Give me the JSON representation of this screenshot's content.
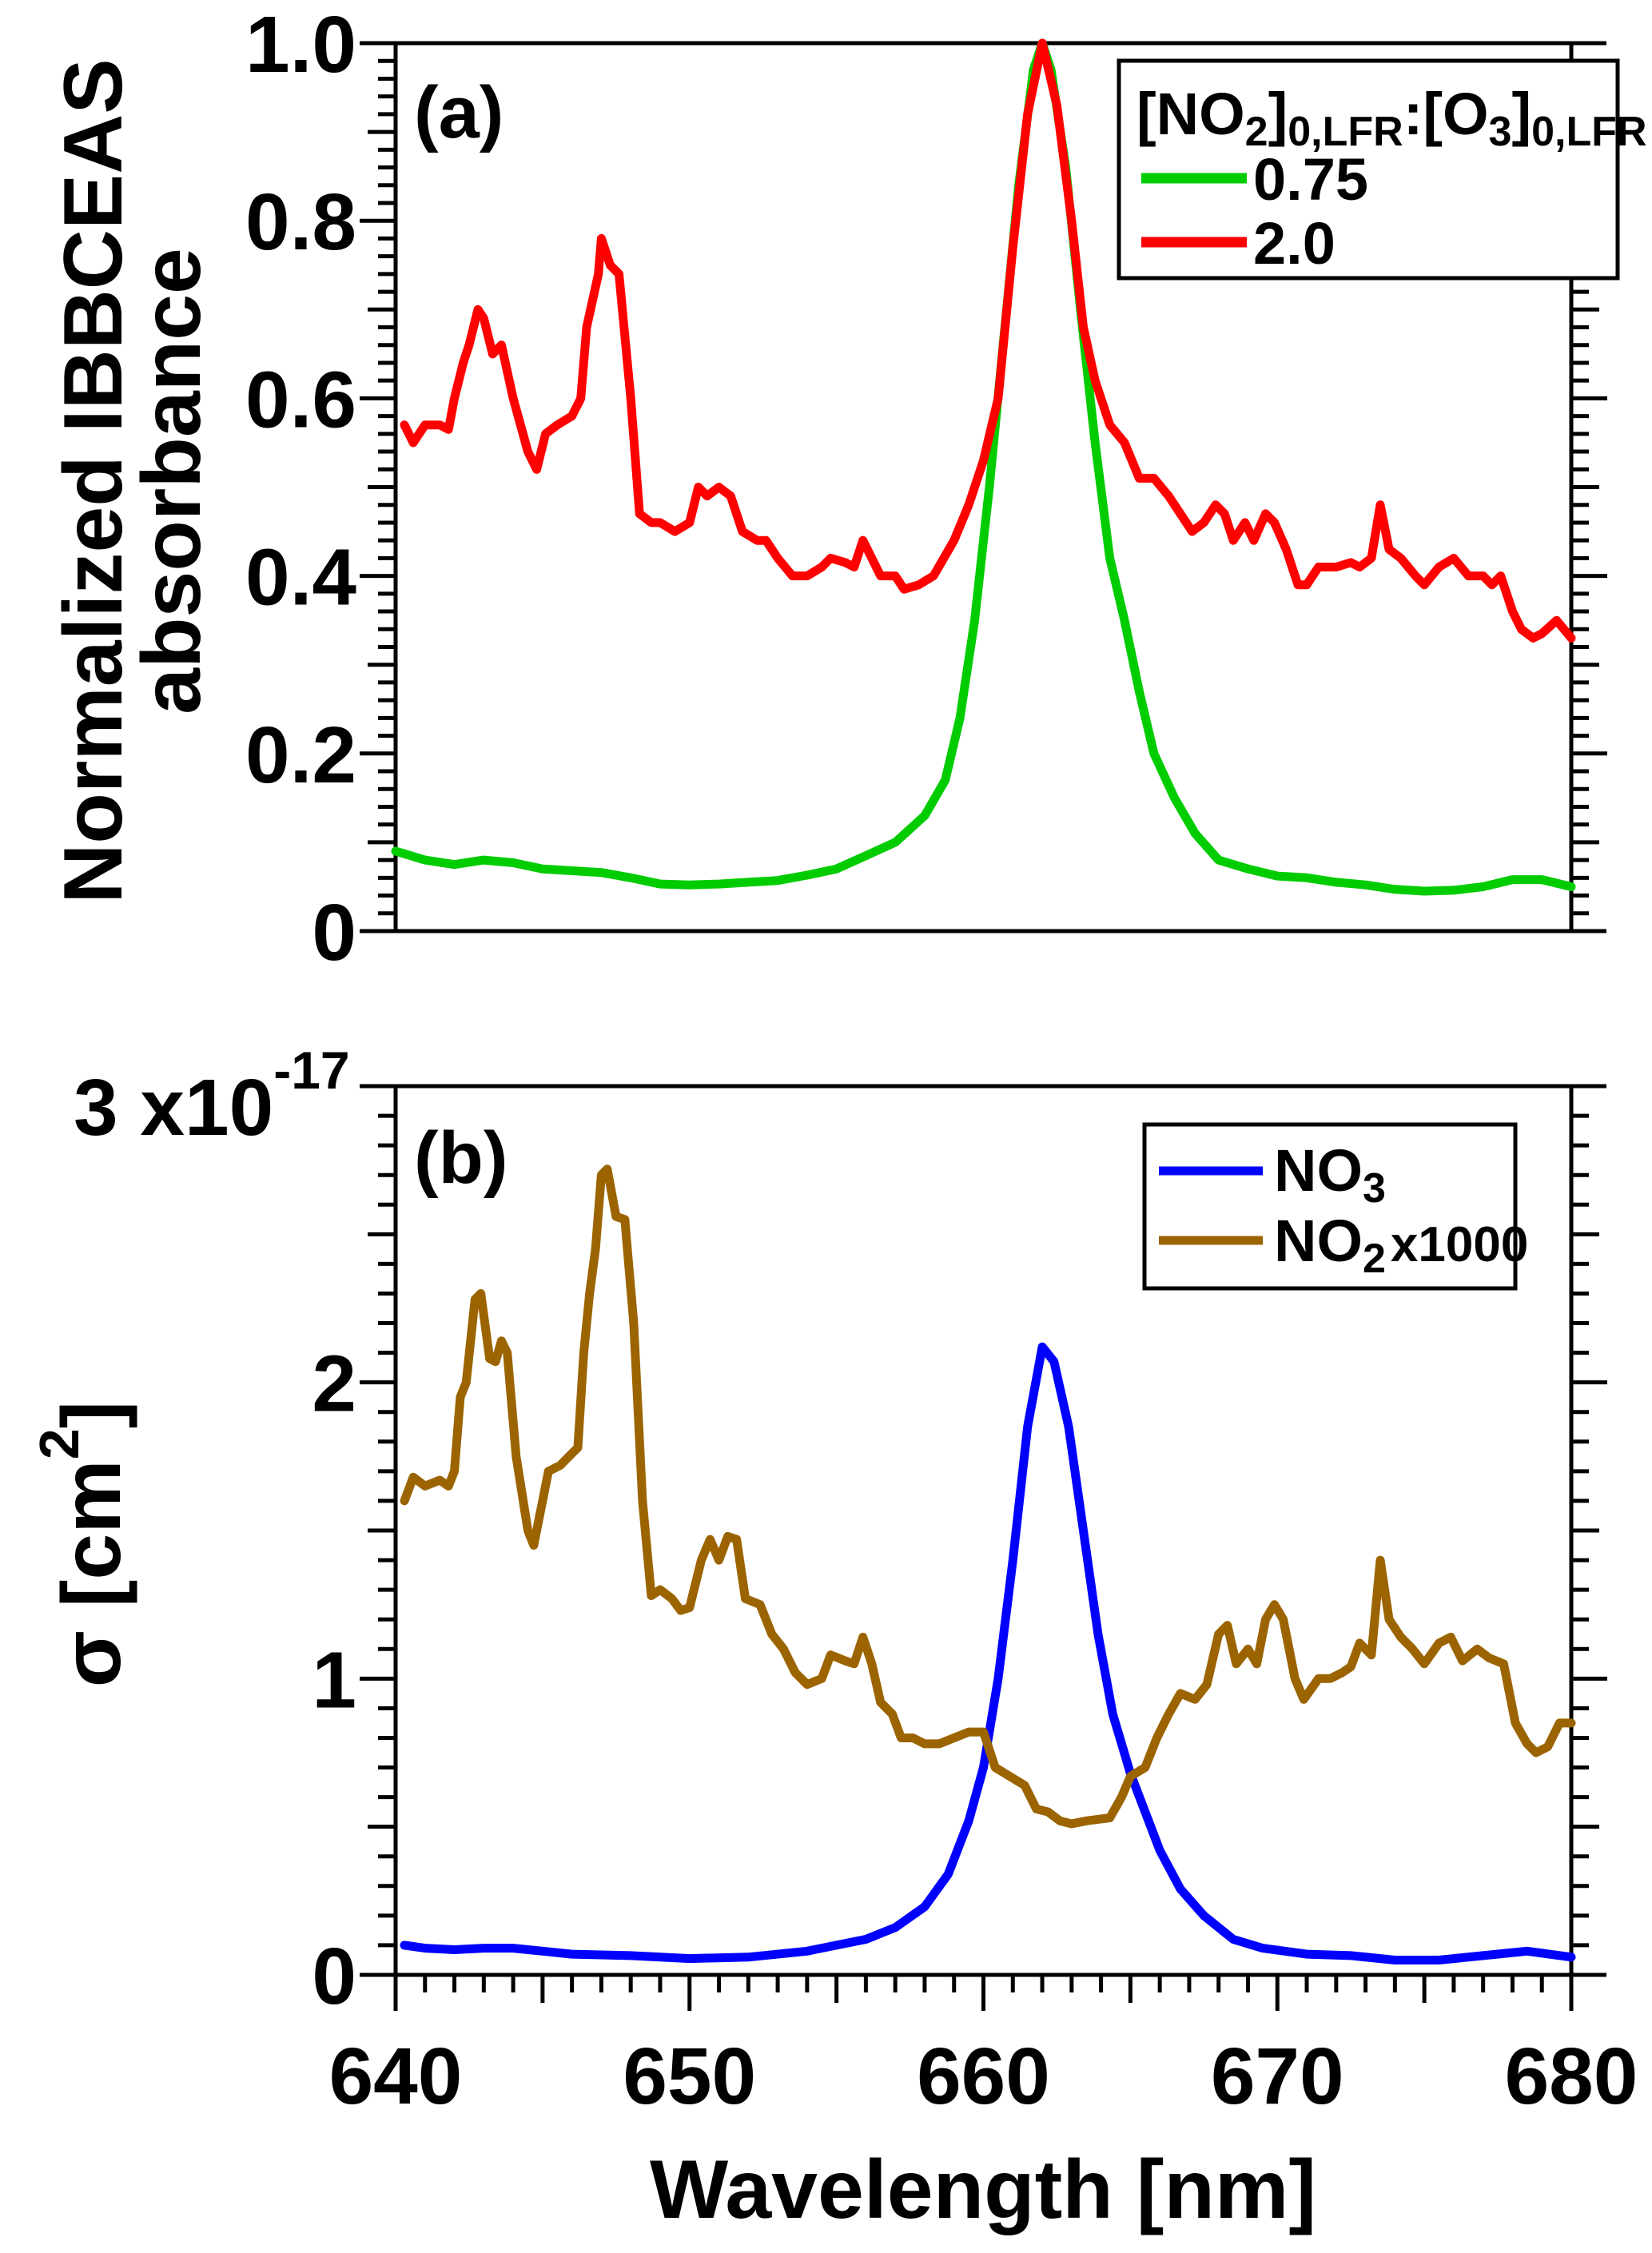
{
  "chart_data": [
    {
      "type": "line",
      "panel_label": "(a)",
      "ylabel_lines": [
        "Normalized IBBCEAS",
        "absorbance"
      ],
      "xlim": [
        640,
        680
      ],
      "ylim": [
        0,
        1.0
      ],
      "yticks": [
        0,
        0.2,
        0.4,
        0.6,
        0.8,
        1.0
      ],
      "ytick_labels": [
        "0",
        "0.2",
        "0.4",
        "0.6",
        "0.8",
        "1.0"
      ],
      "legend": {
        "placement": "top-right",
        "title_parts": [
          {
            "t": "[NO",
            "sub": false
          },
          {
            "t": "2",
            "sub": true
          },
          {
            "t": "]",
            "sub": false
          },
          {
            "t": "0,LFR",
            "sub": true
          },
          {
            "t": ":[O",
            "sub": false
          },
          {
            "t": "3",
            "sub": true
          },
          {
            "t": "]",
            "sub": false
          },
          {
            "t": "0,LFR",
            "sub": true
          }
        ]
      },
      "series": [
        {
          "name": "0.75",
          "color": "#00cc00",
          "x": [
            640,
            641,
            642,
            643,
            644,
            645,
            646,
            647,
            648,
            649,
            650,
            651,
            652,
            653,
            654,
            655,
            656,
            657,
            658,
            658.7,
            659.2,
            659.7,
            660.2,
            660.7,
            661.2,
            661.7,
            662,
            662.3,
            662.8,
            663.3,
            663.8,
            664.3,
            664.8,
            665.3,
            665.8,
            666.5,
            667.2,
            668,
            669,
            670,
            671,
            672,
            673,
            674,
            675,
            676,
            677,
            678,
            679,
            680
          ],
          "y": [
            0.09,
            0.08,
            0.075,
            0.08,
            0.077,
            0.07,
            0.068,
            0.066,
            0.06,
            0.053,
            0.052,
            0.053,
            0.055,
            0.057,
            0.063,
            0.07,
            0.085,
            0.1,
            0.13,
            0.17,
            0.24,
            0.35,
            0.5,
            0.67,
            0.84,
            0.97,
            1.0,
            0.97,
            0.86,
            0.7,
            0.55,
            0.42,
            0.35,
            0.27,
            0.2,
            0.15,
            0.11,
            0.08,
            0.07,
            0.062,
            0.06,
            0.055,
            0.052,
            0.047,
            0.045,
            0.046,
            0.05,
            0.058,
            0.058,
            0.05
          ]
        },
        {
          "name": "2.0",
          "color": "#ff0000",
          "x": [
            640.3,
            640.6,
            641,
            641.5,
            641.8,
            642,
            642.3,
            642.5,
            642.8,
            643,
            643.3,
            643.6,
            644,
            644.5,
            644.8,
            645.1,
            645.5,
            646,
            646.3,
            646.5,
            646.9,
            647,
            647.3,
            647.6,
            648,
            648.3,
            648.7,
            649,
            649.5,
            650,
            650.3,
            650.6,
            651,
            651.4,
            651.8,
            652.3,
            652.6,
            653,
            653.5,
            654,
            654.5,
            654.8,
            655.3,
            655.6,
            655.9,
            656.2,
            656.5,
            657,
            657.3,
            657.8,
            658.3,
            659,
            659.5,
            660,
            660.5,
            661,
            661.5,
            662,
            662.5,
            663,
            663.4,
            663.8,
            664.3,
            664.8,
            665.3,
            665.8,
            666.3,
            666.7,
            667.1,
            667.5,
            667.9,
            668.2,
            668.5,
            668.9,
            669.2,
            669.6,
            669.9,
            670.3,
            670.7,
            671,
            671.4,
            672,
            672.5,
            672.8,
            673.2,
            673.5,
            673.8,
            674.2,
            674.7,
            675,
            675.5,
            676,
            676.5,
            677,
            677.3,
            677.6,
            678,
            678.3,
            678.7,
            679,
            679.5,
            680
          ],
          "y": [
            0.57,
            0.55,
            0.57,
            0.57,
            0.565,
            0.6,
            0.64,
            0.66,
            0.7,
            0.69,
            0.65,
            0.66,
            0.6,
            0.54,
            0.52,
            0.56,
            0.57,
            0.58,
            0.6,
            0.68,
            0.74,
            0.78,
            0.75,
            0.74,
            0.6,
            0.47,
            0.46,
            0.46,
            0.45,
            0.46,
            0.5,
            0.49,
            0.5,
            0.49,
            0.45,
            0.44,
            0.44,
            0.42,
            0.4,
            0.4,
            0.41,
            0.42,
            0.415,
            0.41,
            0.44,
            0.42,
            0.4,
            0.4,
            0.385,
            0.39,
            0.4,
            0.44,
            0.48,
            0.53,
            0.6,
            0.77,
            0.92,
            1.0,
            0.93,
            0.8,
            0.68,
            0.62,
            0.57,
            0.55,
            0.51,
            0.51,
            0.49,
            0.47,
            0.45,
            0.46,
            0.48,
            0.47,
            0.44,
            0.46,
            0.44,
            0.47,
            0.46,
            0.43,
            0.39,
            0.39,
            0.41,
            0.41,
            0.415,
            0.41,
            0.42,
            0.48,
            0.43,
            0.42,
            0.4,
            0.39,
            0.41,
            0.42,
            0.4,
            0.4,
            0.39,
            0.4,
            0.36,
            0.34,
            0.33,
            0.335,
            0.35,
            0.33
          ]
        }
      ]
    },
    {
      "type": "line",
      "panel_label": "(b)",
      "ylabel": "σ [cm",
      "ylabel_sup": "2",
      "ylabel_end": "]",
      "xlabel": "Wavelength [nm]",
      "xlim": [
        640,
        680
      ],
      "ylim": [
        0,
        3
      ],
      "y_multiplier_base": "3 x10",
      "y_multiplier_exp": "-17",
      "yticks": [
        0,
        1,
        2
      ],
      "ytick_labels": [
        "0",
        "1",
        "2"
      ],
      "xticks": [
        640,
        650,
        660,
        670,
        680
      ],
      "xtick_labels": [
        "640",
        "650",
        "660",
        "670",
        "680"
      ],
      "legend": {
        "placement": "top-right"
      },
      "series": [
        {
          "name": "NO",
          "name_sub": "3",
          "name_suffix": "",
          "color": "#0000ff",
          "x": [
            640.3,
            641,
            642,
            643,
            644,
            645,
            646,
            648,
            650,
            652,
            654,
            655,
            656,
            657,
            658,
            658.8,
            659.5,
            660,
            660.5,
            661,
            661.5,
            662,
            662.4,
            662.9,
            663.4,
            663.9,
            664.4,
            665,
            665.5,
            666,
            666.7,
            667.5,
            668.5,
            669.5,
            671,
            672.5,
            674,
            675.5,
            677,
            678.5,
            680
          ],
          "y": [
            0.1,
            0.09,
            0.085,
            0.09,
            0.09,
            0.08,
            0.07,
            0.065,
            0.055,
            0.06,
            0.08,
            0.1,
            0.12,
            0.16,
            0.23,
            0.34,
            0.52,
            0.7,
            1.0,
            1.4,
            1.85,
            2.12,
            2.07,
            1.85,
            1.5,
            1.15,
            0.88,
            0.68,
            0.55,
            0.42,
            0.29,
            0.2,
            0.12,
            0.09,
            0.07,
            0.065,
            0.05,
            0.05,
            0.065,
            0.08,
            0.06
          ]
        },
        {
          "name": "NO",
          "name_sub": "2",
          "name_suffix": "x1000",
          "color": "#9b6400",
          "x": [
            640.3,
            640.6,
            641,
            641.5,
            641.8,
            642,
            642.2,
            642.4,
            642.7,
            642.9,
            643.2,
            643.4,
            643.6,
            643.8,
            644.1,
            644.5,
            644.7,
            645,
            645.2,
            645.6,
            645.9,
            646.2,
            646.4,
            646.6,
            646.8,
            647,
            647.2,
            647.5,
            647.8,
            648.1,
            648.4,
            648.7,
            649,
            649.4,
            649.7,
            650,
            650.4,
            650.7,
            651,
            651.3,
            651.6,
            651.9,
            652.4,
            652.8,
            653.2,
            653.6,
            654,
            654.5,
            654.8,
            655.3,
            655.6,
            655.9,
            656.2,
            656.5,
            656.9,
            657.2,
            657.6,
            658,
            658.5,
            659,
            659.5,
            660,
            660.4,
            660.9,
            661.4,
            661.8,
            662.2,
            662.6,
            663,
            663.5,
            664.3,
            664.7,
            665,
            665.5,
            665.9,
            666.3,
            666.7,
            667.2,
            667.6,
            668,
            668.3,
            668.6,
            669,
            669.3,
            669.6,
            669.9,
            670.2,
            670.6,
            670.9,
            671.4,
            671.8,
            672.2,
            672.5,
            672.8,
            673.2,
            673.5,
            673.8,
            674.2,
            674.6,
            675,
            675.5,
            675.9,
            676.3,
            676.8,
            677.2,
            677.7,
            678.1,
            678.5,
            678.8,
            679.2,
            679.6,
            680
          ],
          "y": [
            1.6,
            1.68,
            1.65,
            1.67,
            1.65,
            1.7,
            1.95,
            2.0,
            2.28,
            2.3,
            2.08,
            2.07,
            2.14,
            2.1,
            1.75,
            1.5,
            1.45,
            1.6,
            1.7,
            1.72,
            1.75,
            1.78,
            2.1,
            2.3,
            2.45,
            2.7,
            2.72,
            2.56,
            2.55,
            2.2,
            1.6,
            1.28,
            1.3,
            1.27,
            1.23,
            1.24,
            1.4,
            1.47,
            1.4,
            1.48,
            1.47,
            1.27,
            1.25,
            1.15,
            1.1,
            1.02,
            0.98,
            1.0,
            1.08,
            1.06,
            1.05,
            1.14,
            1.05,
            0.92,
            0.88,
            0.8,
            0.8,
            0.78,
            0.78,
            0.8,
            0.82,
            0.82,
            0.7,
            0.67,
            0.64,
            0.56,
            0.55,
            0.52,
            0.51,
            0.52,
            0.53,
            0.6,
            0.67,
            0.7,
            0.8,
            0.88,
            0.95,
            0.93,
            0.98,
            1.15,
            1.18,
            1.05,
            1.1,
            1.05,
            1.2,
            1.25,
            1.2,
            1.0,
            0.93,
            1.0,
            1.0,
            1.02,
            1.04,
            1.12,
            1.08,
            1.4,
            1.2,
            1.14,
            1.1,
            1.05,
            1.12,
            1.14,
            1.06,
            1.1,
            1.07,
            1.05,
            0.85,
            0.78,
            0.75,
            0.77,
            0.85,
            0.85
          ]
        }
      ]
    }
  ]
}
